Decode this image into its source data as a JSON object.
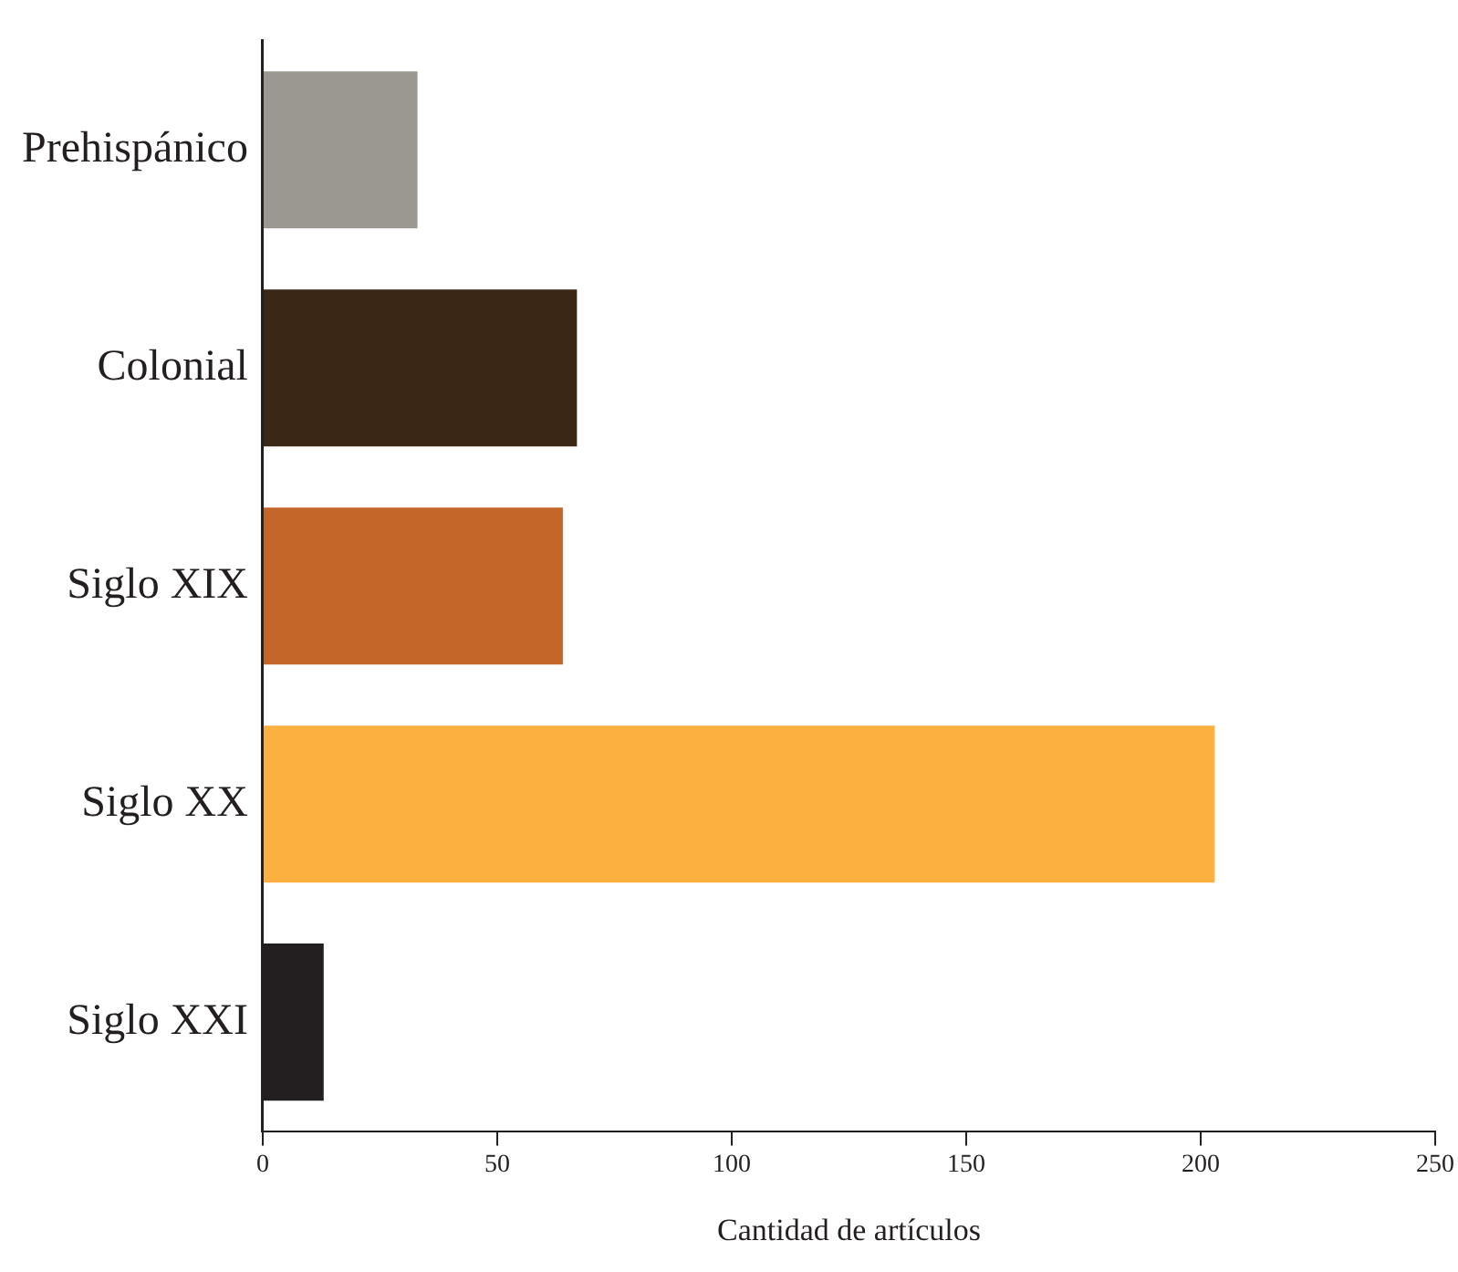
{
  "chart_data": {
    "type": "bar",
    "orientation": "horizontal",
    "xlabel": "Cantidad de artículos",
    "categories": [
      "Prehispánico",
      "Colonial",
      "Siglo XIX",
      "Siglo XX",
      "Siglo XXI"
    ],
    "values": [
      33,
      67,
      64,
      203,
      13
    ],
    "colors": [
      "#9a9891",
      "#3a2716",
      "#c4662a",
      "#fbb040",
      "#231f20"
    ],
    "xlim": [
      0,
      250
    ],
    "xticks": [
      0,
      50,
      100,
      150,
      200,
      250
    ],
    "grid": false,
    "legend": false
  }
}
